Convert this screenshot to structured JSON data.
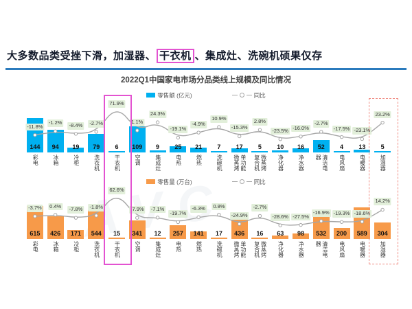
{
  "heading": {
    "text_before": "大多数品类受挫下滑，加湿器、",
    "text_highlighted": "干衣机",
    "text_after": "、集成灶、洗碗机硕果仅存",
    "underline_color": "#2b7bbd",
    "highlight_box_color": "#e353d1"
  },
  "chart_title": "2022Q1中国家电市场分品类线上规模及同比情况",
  "watermark": "AVC",
  "colors": {
    "retail_value_bar": "#00b0f0",
    "retail_volume_bar": "#f79a49",
    "trend_line": "#a6a6a6",
    "yoy_badge_bg": "#e2efda",
    "dryer_box": "#e353d1",
    "humidifier_box": "#f08a80",
    "heading_underline": "#2b7bbd"
  },
  "chart_data": [
    {
      "type": "bar",
      "title": "零售额 (亿元)",
      "legend": [
        "零售额 (亿元)",
        "同比"
      ],
      "bar_color": "#00b0f0",
      "unit": "亿元",
      "categories": [
        "彩电",
        "冰箱",
        "冷柜",
        "洗衣机",
        "干衣机",
        "空调",
        "集成灶",
        "电热",
        "燃热",
        "洗碗机",
        "单功能微蒸烤",
        "微蒸烤复合机",
        "净化器",
        "净水器",
        "清洁电器",
        "电风扇",
        "电暖器",
        "加湿器"
      ],
      "label_columns": [
        [
          "彩电"
        ],
        [
          "冰箱"
        ],
        [
          "冷柜"
        ],
        [
          "洗衣机"
        ],
        [
          "干衣机"
        ],
        [
          "空调"
        ],
        [
          "集成灶"
        ],
        [
          "电热"
        ],
        [
          "燃热"
        ],
        [
          "洗碗机"
        ],
        [
          "微蒸烤",
          "单功能"
        ],
        [
          "复合机",
          "微蒸烤"
        ],
        [
          "净化器"
        ],
        [
          "净水器"
        ],
        [
          "器",
          "清洁电"
        ],
        [
          "电风扇"
        ],
        [
          "电暖器"
        ],
        [
          "加湿器"
        ]
      ],
      "values": [
        144,
        94,
        19,
        79,
        6,
        109,
        9,
        25,
        21,
        7,
        17,
        5,
        10,
        16,
        52,
        4,
        13,
        5
      ],
      "yoy_percent": [
        -11.8,
        -1.2,
        -8.4,
        -2.7,
        71.9,
        1.1,
        24.3,
        -19.1,
        -4.9,
        10.9,
        -15.3,
        2.8,
        -23.5,
        -16.0,
        -2.7,
        -17.5,
        -23.1,
        23.2
      ],
      "yoy_labels": [
        "-11.8%",
        "-1.2%",
        "-8.4%",
        "-2.7%",
        "71.9%",
        "1.1%",
        "24.3%",
        "-19.1%",
        "-4.9%",
        "10.9%",
        "-15.3%",
        "2.8%",
        "-23.5%",
        "-16.0%",
        "-2.7%",
        "-17.5%",
        "-23.1%",
        "23.2%"
      ]
    },
    {
      "type": "bar",
      "title": "零售量 (万台)",
      "legend": [
        "零售量 (万台)",
        "同比"
      ],
      "bar_color": "#f79a49",
      "unit": "万台",
      "categories": [
        "彩电",
        "冰箱",
        "冷柜",
        "洗衣机",
        "干衣机",
        "空调",
        "集成灶",
        "电热",
        "燃热",
        "洗碗机",
        "单功能微蒸烤",
        "微蒸烤复合机",
        "净化器",
        "净水器",
        "清洁电器",
        "电风扇",
        "电暖器",
        "加湿器"
      ],
      "label_columns": [
        [
          "彩电"
        ],
        [
          "冰箱"
        ],
        [
          "冷柜"
        ],
        [
          "洗衣机"
        ],
        [
          "干衣机"
        ],
        [
          "空调"
        ],
        [
          "集成灶"
        ],
        [
          "电热"
        ],
        [
          "燃热"
        ],
        [
          "洗碗机"
        ],
        [
          "微蒸烤",
          "单功能"
        ],
        [
          "复合机",
          "微蒸烤"
        ],
        [
          "净化器"
        ],
        [
          "净水器"
        ],
        [
          "器",
          "清洁电"
        ],
        [
          "电风扇"
        ],
        [
          "电暖器"
        ],
        [
          "加湿器"
        ]
      ],
      "values": [
        615,
        426,
        171,
        544,
        15,
        341,
        12,
        257,
        141,
        17,
        436,
        16,
        63,
        98,
        532,
        200,
        589,
        304
      ],
      "yoy_percent": [
        -3.7,
        0.4,
        -7.8,
        -1.8,
        62.6,
        -7.9,
        -7.1,
        -19.7,
        -6.3,
        0.8,
        -24.9,
        -2.7,
        -28.6,
        -27.5,
        -16.9,
        -19.3,
        -18.6,
        14.2
      ],
      "yoy_labels": [
        "-3.7%",
        "0.4%",
        "-7.8%",
        "-1.8%",
        "62.6%",
        "-7.9%",
        "-7.1%",
        "-19.7%",
        "-6.3%",
        "0.8%",
        "-24.9%",
        "-2.7%",
        "-28.6%",
        "-27.5%",
        "-16.9%",
        "-19.3%",
        "-18.6%",
        "14.2%"
      ]
    }
  ],
  "annotations": {
    "dryer_column_box": {
      "target": "干衣机",
      "style": "solid",
      "color": "#e353d1"
    },
    "humidifier_column_box": {
      "target": "加湿器",
      "style": "dashed",
      "color": "#f08a80"
    }
  }
}
